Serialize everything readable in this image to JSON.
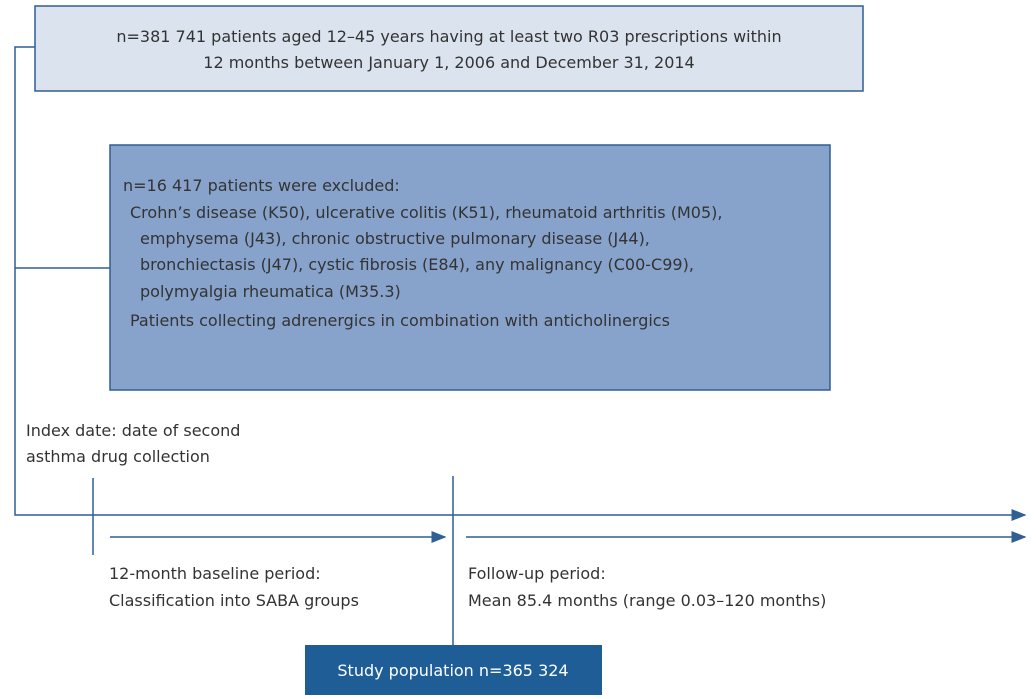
{
  "top_box": {
    "lines": [
      "n=381 741 patients aged 12–45 years having at least two R03 prescriptions within",
      "12 months between January 1, 2006 and December 31, 2014"
    ]
  },
  "exclusion_box": {
    "lines": [
      "n=16 417 patients were excluded:",
      "Crohn’s disease (K50), ulcerative colitis (K51), rheumatoid arthritis (M05),",
      "emphysema (J43), chronic obstructive pulmonary disease (J44),",
      "bronchiectasis (J47), cystic fibrosis (E84), any malignancy (C00-C99),",
      "polymyalgia rheumatica (M35.3)",
      "Patients collecting adrenergics in combination with anticholinergics"
    ]
  },
  "index_date": {
    "lines": [
      "Index date: date of second",
      "asthma drug collection"
    ]
  },
  "baseline": {
    "lines": [
      "12-month baseline period:",
      "Classification into SABA groups"
    ]
  },
  "follow_up": {
    "lines": [
      "Follow-up period:",
      "Mean 85.4 months (range 0.03–120 months)"
    ]
  },
  "study_population": "Study population n=365 324"
}
